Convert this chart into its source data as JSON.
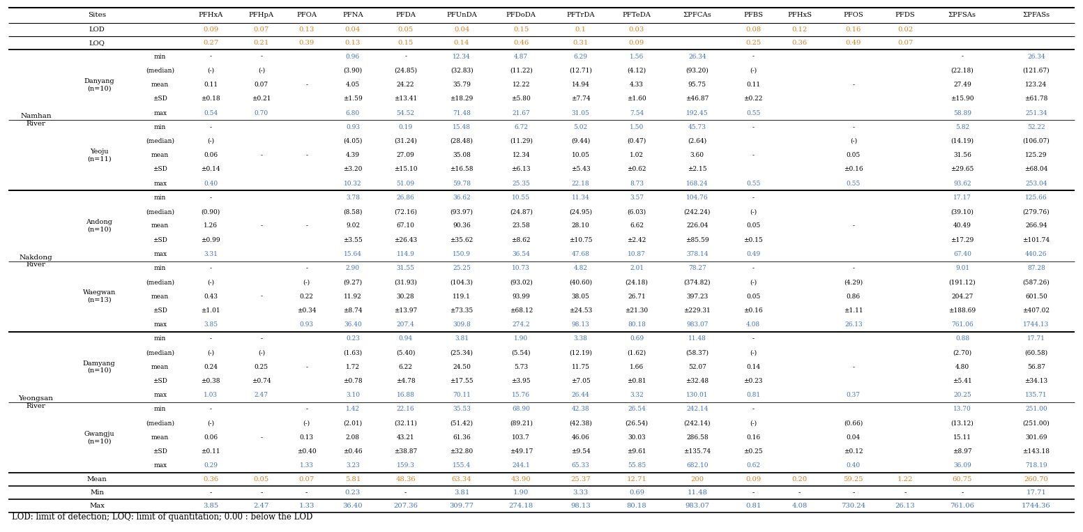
{
  "footnote": "LOD: limit of detection; LOQ: limit of quantitation; 0.00 : below the LOD",
  "col_headers": [
    "Sites",
    "",
    "",
    "PFHxA",
    "PFHpA",
    "PFOA",
    "PFNA",
    "PFDA",
    "PFUnDA",
    "PFDoDA",
    "PFTrDA",
    "PFTeDA",
    "ΣPFCAs",
    "PFBS",
    "PFHxS",
    "PFOS",
    "PFDS",
    "ΣPFSAs",
    "ΣPFASs"
  ],
  "lod_vals": [
    "",
    "",
    "",
    "0.09",
    "0.07",
    "0.13",
    "0.04",
    "0.05",
    "0.04",
    "0.15",
    "0.1",
    "0.03",
    "",
    "0.08",
    "0.12",
    "0.16",
    "0.02",
    "",
    ""
  ],
  "loq_vals": [
    "",
    "",
    "",
    "0.27",
    "0.21",
    "0.39",
    "0.13",
    "0.15",
    "0.14",
    "0.46",
    "0.31",
    "0.09",
    "",
    "0.25",
    "0.36",
    "0.49",
    "0.07",
    "",
    ""
  ],
  "rivers": [
    {
      "name": "Namhan\nRiver",
      "sites": [
        {
          "name": "Danyang\n(n=10)",
          "rows": {
            "min": [
              "-",
              "-",
              "",
              "0.96",
              "-",
              "12.34",
              "4.87",
              "6.29",
              "1.56",
              "26.34",
              "-",
              "",
              "-",
              "26.34"
            ],
            "med": [
              "(-)",
              "(-)",
              "",
              "(3.90)",
              "(24.85)",
              "(32.83)",
              "(11.22)",
              "(12.71)",
              "(4.12)",
              "(93.20)",
              "(-)",
              "",
              "(22.18)",
              "(121.67)"
            ],
            "mean": [
              "0.11",
              "0.07",
              "-",
              "4.05",
              "24.22",
              "35.79",
              "12.22",
              "14.94",
              "4.33",
              "95.75",
              "0.11",
              "-",
              "27.49",
              "123.24"
            ],
            "sd": [
              "±0.18",
              "±0.21",
              "",
              "±1.59",
              "±13.41",
              "±18.29",
              "±5.80",
              "±7.74",
              "±1.60",
              "±46.87",
              "±0.22",
              "",
              "±15.90",
              "±61.78"
            ],
            "max": [
              "0.54",
              "0.70",
              "",
              "6.80",
              "54.52",
              "71.48",
              "21.67",
              "31.05",
              "7.54",
              "192.45",
              "0.55",
              "",
              "58.89",
              "251.34"
            ]
          }
        },
        {
          "name": "Yeoju\n(n=11)",
          "rows": {
            "min": [
              "-",
              "",
              "",
              "0.93",
              "0.19",
              "15.48",
              "6.72",
              "5.02",
              "1.50",
              "45.73",
              "-",
              "-",
              "5.82",
              "52.22"
            ],
            "med": [
              "(-)",
              "",
              "",
              "(4.05)",
              "(31.24)",
              "(28.48)",
              "(11.29)",
              "(9.44)",
              "(0.47)",
              "(2.64)",
              "",
              "(-)",
              "(14.19)",
              "(106.07)"
            ],
            "mean": [
              "0.06",
              "-",
              "-",
              "4.39",
              "27.09",
              "35.08",
              "12.34",
              "10.05",
              "1.02",
              "3.60",
              "-",
              "0.05",
              "31.56",
              "125.29"
            ],
            "sd": [
              "±0.14",
              "",
              "",
              "±3.20",
              "±15.10",
              "±16.58",
              "±6.13",
              "±5.43",
              "±0.62",
              "±2.15",
              "",
              "±0.16",
              "±29.65",
              "±68.04"
            ],
            "max": [
              "0.40",
              "",
              "",
              "10.32",
              "51.09",
              "59.78",
              "25.35",
              "22.18",
              "8.73",
              "168.24",
              "0.55",
              "0.55",
              "93.62",
              "253.04"
            ]
          }
        }
      ]
    },
    {
      "name": "Nakdong\nRiver",
      "sites": [
        {
          "name": "Andong\n(n=10)",
          "rows": {
            "min": [
              "-",
              "",
              "",
              "3.78",
              "26.86",
              "36.62",
              "10.55",
              "11.34",
              "3.57",
              "104.76",
              "-",
              "",
              "17.17",
              "125.66"
            ],
            "med": [
              "(0.90)",
              "",
              "",
              "(8.58)",
              "(72.16)",
              "(93.97)",
              "(24.87)",
              "(24.95)",
              "(6.03)",
              "(242.24)",
              "(-)",
              "",
              "(39.10)",
              "(279.76)"
            ],
            "mean": [
              "1.26",
              "-",
              "-",
              "9.02",
              "67.10",
              "90.36",
              "23.58",
              "28.10",
              "6.62",
              "226.04",
              "0.05",
              "-",
              "40.49",
              "266.94"
            ],
            "sd": [
              "±0.99",
              "",
              "",
              "±3.55",
              "±26.43",
              "±35.62",
              "±8.62",
              "±10.75",
              "±2.42",
              "±85.59",
              "±0.15",
              "",
              "±17.29",
              "±101.74"
            ],
            "max": [
              "3.31",
              "",
              "",
              "15.64",
              "114.9",
              "150.9",
              "36.54",
              "47.68",
              "10.87",
              "378.14",
              "0.49",
              "",
              "67.40",
              "440.26"
            ]
          }
        },
        {
          "name": "Waegwan\n(n=13)",
          "rows": {
            "min": [
              "-",
              "",
              "-",
              "2.90",
              "31.55",
              "25.25",
              "10.73",
              "4.82",
              "2.01",
              "78.27",
              "-",
              "-",
              "9.01",
              "87.28"
            ],
            "med": [
              "(-)",
              "",
              "(-)",
              "(9.27)",
              "(31.93)",
              "(104.3)",
              "(93.02)",
              "(40.60)",
              "(24.18)",
              "(374.82)",
              "(-)",
              "(4.29)",
              "(191.12)",
              "(587.26)"
            ],
            "mean": [
              "0.43",
              "-",
              "0.22",
              "11.92",
              "30.28",
              "119.1",
              "93.99",
              "38.05",
              "26.71",
              "397.23",
              "0.05",
              "0.86",
              "204.27",
              "601.50"
            ],
            "sd": [
              "±1.01",
              "",
              "±0.34",
              "±8.74",
              "±13.97",
              "±73.35",
              "±68.12",
              "±24.53",
              "±21.30",
              "±229.31",
              "±0.16",
              "±1.11",
              "±188.69",
              "±407.02"
            ],
            "max": [
              "3.85",
              "",
              "0.93",
              "36.40",
              "207.4",
              "309.8",
              "274.2",
              "98.13",
              "80.18",
              "983.07",
              "4.08",
              "26.13",
              "761.06",
              "1744.13"
            ]
          }
        }
      ]
    },
    {
      "name": "Yeongsan\nRiver",
      "sites": [
        {
          "name": "Damyang\n(n=10)",
          "rows": {
            "min": [
              "-",
              "-",
              "",
              "0.23",
              "0.94",
              "3.81",
              "1.90",
              "3.38",
              "0.69",
              "11.48",
              "-",
              "",
              "0.88",
              "17.71"
            ],
            "med": [
              "(-)",
              "(-)",
              "",
              "(1.63)",
              "(5.40)",
              "(25.34)",
              "(5.54)",
              "(12.19)",
              "(1.62)",
              "(58.37)",
              "(-)",
              "",
              "(2.70)",
              "(60.58)"
            ],
            "mean": [
              "0.24",
              "0.25",
              "-",
              "1.72",
              "6.22",
              "24.50",
              "5.73",
              "11.75",
              "1.66",
              "52.07",
              "0.14",
              "-",
              "4.80",
              "56.87"
            ],
            "sd": [
              "±0.38",
              "±0.74",
              "",
              "±0.78",
              "±4.78",
              "±17.55",
              "±3.95",
              "±7.05",
              "±0.81",
              "±32.48",
              "±0.23",
              "",
              "±5.41",
              "±34.13"
            ],
            "max": [
              "1.03",
              "2.47",
              "",
              "3.10",
              "16.88",
              "70.11",
              "15.76",
              "26.44",
              "3.32",
              "130.01",
              "0.81",
              "0.37",
              "20.25",
              "135.71"
            ]
          }
        },
        {
          "name": "Gwangju\n(n=10)",
          "rows": {
            "min": [
              "-",
              "",
              "-",
              "1.42",
              "22.16",
              "35.53",
              "68.90",
              "42.38",
              "26.54",
              "242.14",
              "-",
              "",
              "13.70",
              "251.00"
            ],
            "med": [
              "(-)",
              "",
              "(-)",
              "(2.01)",
              "(32.11)",
              "(51.42)",
              "(89.21)",
              "(42.38)",
              "(26.54)",
              "(242.14)",
              "(-)",
              "(0.66)",
              "(13.12)",
              "(251.00)"
            ],
            "mean": [
              "0.06",
              "-",
              "0.13",
              "2.08",
              "43.21",
              "61.36",
              "103.7",
              "46.06",
              "30.03",
              "286.58",
              "0.16",
              "0.04",
              "15.11",
              "301.69"
            ],
            "sd": [
              "±0.11",
              "",
              "±0.40",
              "±0.46",
              "±38.87",
              "±32.80",
              "±49.17",
              "±9.54",
              "±9.61",
              "±135.74",
              "±0.25",
              "±0.12",
              "±8.97",
              "±143.18"
            ],
            "max": [
              "0.29",
              "",
              "1.33",
              "3.23",
              "159.3",
              "155.4",
              "244.1",
              "65.33",
              "55.85",
              "682.10",
              "0.62",
              "0.40",
              "36.09",
              "718.19"
            ]
          }
        }
      ]
    }
  ],
  "summary_rows": [
    {
      "label": "Mean",
      "vals": [
        "",
        "0.36",
        "0.05",
        "0.07",
        "5.81",
        "48.36",
        "63.34",
        "43.90",
        "25.37",
        "12.71",
        "200",
        "0.09",
        "0.20",
        "59.25",
        "1.22",
        "60.75",
        "260.70"
      ]
    },
    {
      "label": "Min",
      "vals": [
        "",
        "-",
        "-",
        "-",
        "0.23",
        "-",
        "3.81",
        "1.90",
        "3.33",
        "0.69",
        "11.48",
        "-",
        "-",
        "-",
        "-",
        "-",
        "17.71"
      ]
    },
    {
      "label": "Max",
      "vals": [
        "",
        "3.85",
        "2.47",
        "1.33",
        "36.40",
        "207.36",
        "309.77",
        "274.18",
        "98.13",
        "80.18",
        "983.07",
        "0.81",
        "4.08",
        "730.24",
        "26.13",
        "761.06",
        "1744.36"
      ]
    }
  ],
  "data_to_col": [
    3,
    4,
    5,
    6,
    7,
    8,
    9,
    10,
    11,
    12,
    13,
    15,
    17,
    18
  ],
  "summary_col_map": [
    null,
    3,
    4,
    5,
    6,
    7,
    8,
    9,
    10,
    11,
    12,
    13,
    14,
    15,
    16,
    17,
    18
  ],
  "orange": "#E08020",
  "blue": "#4472C4",
  "black": "#000000",
  "bg": "#FFFFFF",
  "col_widths_raw": [
    50,
    65,
    46,
    46,
    46,
    36,
    48,
    48,
    54,
    54,
    54,
    48,
    62,
    40,
    44,
    54,
    40,
    64,
    70
  ]
}
